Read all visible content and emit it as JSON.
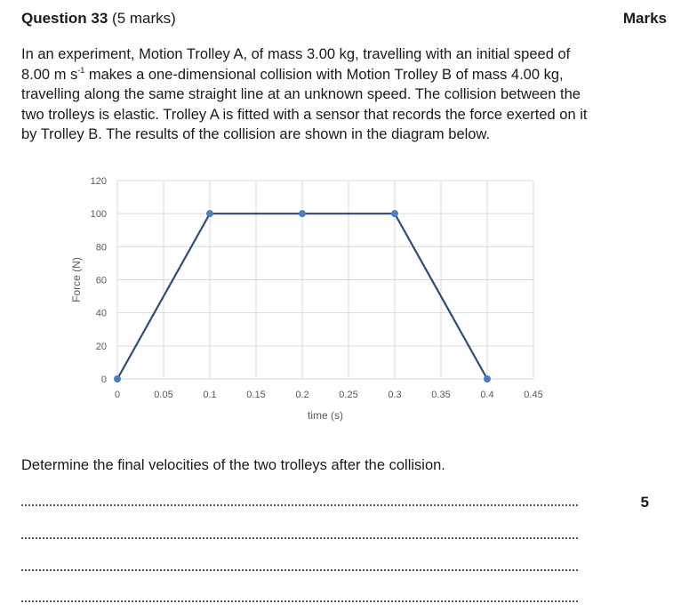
{
  "header": {
    "question_label": "Question 33",
    "marks_note": "(5 marks)",
    "marks_heading": "Marks"
  },
  "intro": {
    "part1": "In an experiment, Motion Trolley A, of mass 3.00 kg, travelling with an initial speed of 8.00 m s",
    "exponent": "-1",
    "part2": " makes a one-dimensional collision with Motion Trolley B of mass 4.00 kg, travelling along the same straight line at an unknown speed.  The collision between the two trolleys is elastic. Trolley A is fitted with a sensor that records the force exerted on it by Trolley B. The results of the collision are shown in the diagram below."
  },
  "chart_data": {
    "type": "line",
    "title": "",
    "xlabel": "time (s)",
    "ylabel": "Force (N)",
    "xlim": [
      0,
      0.45
    ],
    "ylim": [
      0,
      120
    ],
    "x_ticks": [
      "0",
      "0.05",
      "0.1",
      "0.15",
      "0.2",
      "0.25",
      "0.3",
      "0.35",
      "0.4",
      "0.45"
    ],
    "y_ticks": [
      "0",
      "20",
      "40",
      "60",
      "80",
      "100",
      "120"
    ],
    "grid": true,
    "series": [
      {
        "x": [
          0,
          0.1,
          0.2,
          0.3,
          0.4
        ],
        "y": [
          0,
          100,
          100,
          100,
          0
        ],
        "color": "#2f4d75",
        "marker_color": "#4a7ec2"
      }
    ]
  },
  "question": {
    "prompt": "Determine the final velocities of the two trolleys after the collision.",
    "marks_value": "5"
  }
}
